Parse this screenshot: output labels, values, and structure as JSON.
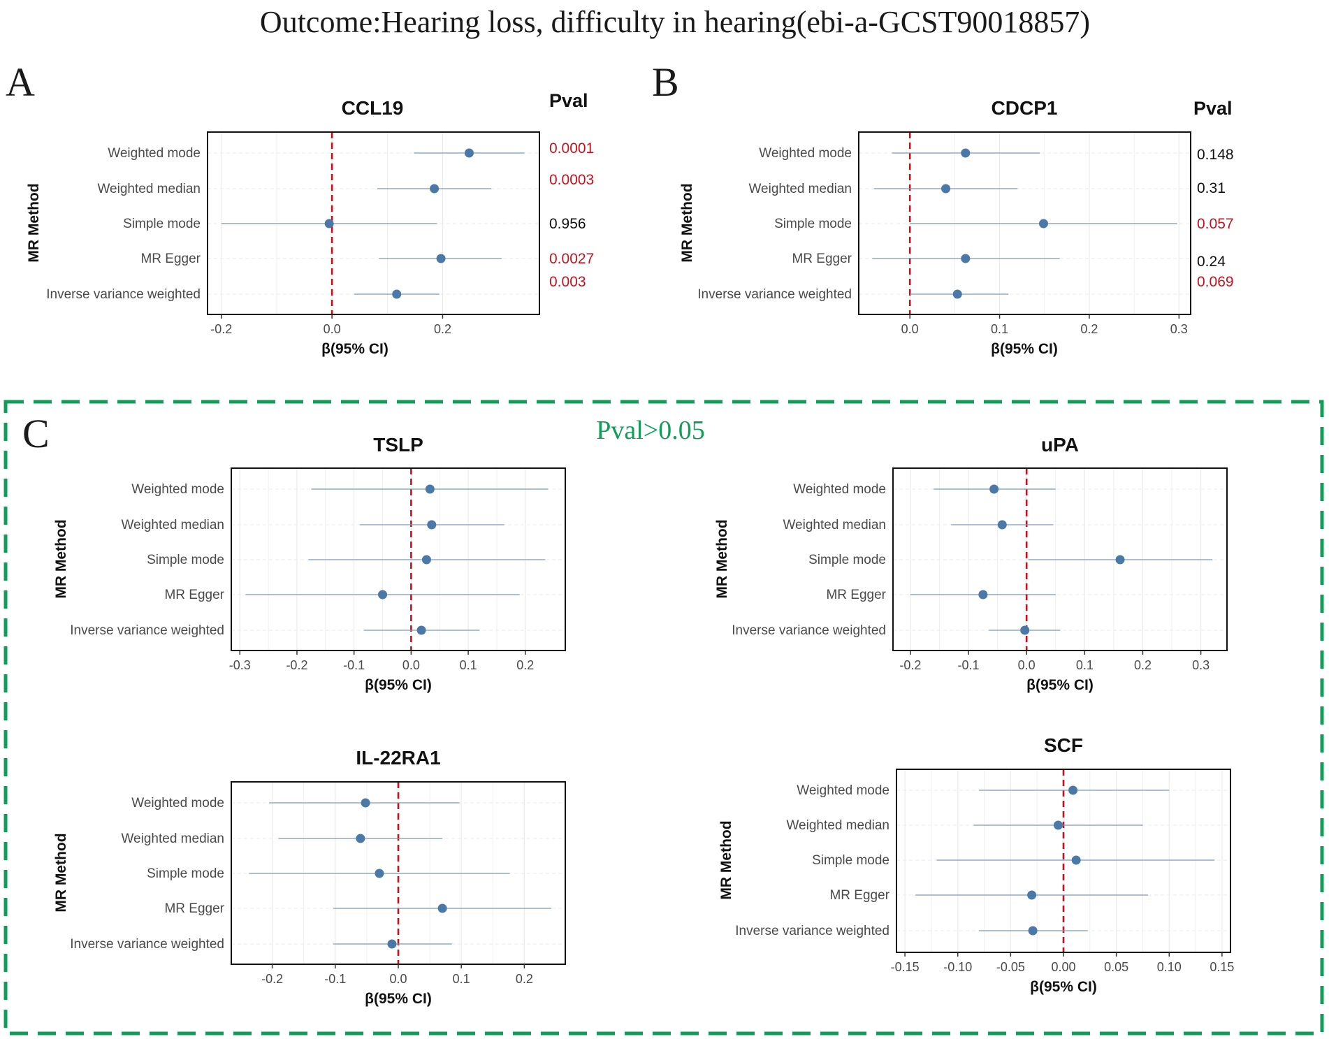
{
  "title": "Outcome:Hearing loss, difficulty in hearing(ebi-a-GCST90018857)",
  "panels": {
    "a": "A",
    "b": "B",
    "c": "C"
  },
  "group_c_label": "Pval>0.05",
  "pval_header": "Pval",
  "colors": {
    "point": "#4a79a8",
    "ci_line": "#7b99b8",
    "ref_line": "#c8101b",
    "significant": "#c8101b",
    "nonsignificant": "#111111",
    "group_box": "#0f9d58",
    "grid": "#ebebeb"
  },
  "chart_data": [
    {
      "type": "forest",
      "title": "CCL19",
      "xlabel": "β(95% CI)",
      "ylabel": "MR Method",
      "xlim": [
        -0.225,
        0.375
      ],
      "xticks": [
        -0.2,
        0.0,
        0.2
      ],
      "tick_labels": [
        "-0.2",
        "0.0",
        "0.2"
      ],
      "methods": [
        "Weighted mode",
        "Weighted median",
        "Simple mode",
        "MR Egger",
        "Inverse variance weighted"
      ],
      "estimates": [
        0.248,
        0.185,
        -0.005,
        0.197,
        0.117
      ],
      "ci_low": [
        0.148,
        0.082,
        -0.2,
        0.085,
        0.04
      ],
      "ci_high": [
        0.348,
        0.288,
        0.19,
        0.307,
        0.194
      ],
      "pvals": [
        "0.0001",
        "0.0003",
        "0.956",
        "0.0027",
        "0.003"
      ],
      "significant": [
        true,
        true,
        false,
        true,
        true
      ]
    },
    {
      "type": "forest",
      "title": "CDCP1",
      "xlabel": "β(95% CI)",
      "ylabel": "MR Method",
      "xlim": [
        -0.057,
        0.313
      ],
      "xticks": [
        0.0,
        0.1,
        0.2,
        0.3
      ],
      "tick_labels": [
        "0.0",
        "0.1",
        "0.2",
        "0.3"
      ],
      "methods": [
        "Weighted mode",
        "Weighted median",
        "Simple mode",
        "MR Egger",
        "Inverse variance weighted"
      ],
      "estimates": [
        0.062,
        0.04,
        0.149,
        0.062,
        0.053
      ],
      "ci_low": [
        -0.02,
        -0.04,
        0.0,
        -0.042,
        0.0
      ],
      "ci_high": [
        0.145,
        0.12,
        0.298,
        0.167,
        0.11
      ],
      "pvals": [
        "0.148",
        "0.31",
        "0.057",
        "0.24",
        "0.069"
      ],
      "significant": [
        false,
        false,
        true,
        false,
        true
      ]
    },
    {
      "type": "forest",
      "title": "TSLP",
      "xlabel": "β(95% CI)",
      "ylabel": "MR Method",
      "xlim": [
        -0.315,
        0.27
      ],
      "xticks": [
        -0.3,
        -0.2,
        -0.1,
        0.0,
        0.1,
        0.2
      ],
      "tick_labels": [
        "-0.3",
        "-0.2",
        "-0.1",
        "0.0",
        "0.1",
        "0.2"
      ],
      "methods": [
        "Weighted mode",
        "Weighted median",
        "Simple mode",
        "MR Egger",
        "Inverse variance weighted"
      ],
      "estimates": [
        0.033,
        0.036,
        0.027,
        -0.05,
        0.018
      ],
      "ci_low": [
        -0.175,
        -0.09,
        -0.18,
        -0.29,
        -0.083
      ],
      "ci_high": [
        0.24,
        0.163,
        0.235,
        0.19,
        0.12
      ],
      "pvals": [],
      "significant": []
    },
    {
      "type": "forest",
      "title": "uPA",
      "xlabel": "β(95% CI)",
      "ylabel": "MR Method",
      "xlim": [
        -0.23,
        0.345
      ],
      "xticks": [
        -0.2,
        -0.1,
        0.0,
        0.1,
        0.2,
        0.3
      ],
      "tick_labels": [
        "-0.2",
        "-0.1",
        "0.0",
        "0.1",
        "0.2",
        "0.3"
      ],
      "methods": [
        "Weighted mode",
        "Weighted median",
        "Simple mode",
        "MR Egger",
        "Inverse variance weighted"
      ],
      "estimates": [
        -0.056,
        -0.042,
        0.161,
        -0.075,
        -0.003
      ],
      "ci_low": [
        -0.16,
        -0.13,
        0.003,
        -0.2,
        -0.065
      ],
      "ci_high": [
        0.05,
        0.046,
        0.32,
        0.05,
        0.058
      ],
      "pvals": [],
      "significant": []
    },
    {
      "type": "forest",
      "title": "IL-22RA1",
      "xlabel": "β(95% CI)",
      "ylabel": "MR Method",
      "xlim": [
        -0.265,
        0.265
      ],
      "xticks": [
        -0.2,
        -0.1,
        0.0,
        0.1,
        0.2
      ],
      "tick_labels": [
        "-0.2",
        "-0.1",
        "0.0",
        "0.1",
        "0.2"
      ],
      "methods": [
        "Weighted mode",
        "Weighted median",
        "Simple mode",
        "MR Egger",
        "Inverse variance weighted"
      ],
      "estimates": [
        -0.052,
        -0.06,
        -0.03,
        0.07,
        -0.01
      ],
      "ci_low": [
        -0.205,
        -0.19,
        -0.237,
        -0.103,
        -0.103
      ],
      "ci_high": [
        0.097,
        0.07,
        0.177,
        0.243,
        0.085
      ],
      "pvals": [],
      "significant": []
    },
    {
      "type": "forest",
      "title": "SCF",
      "xlabel": "β(95% CI)",
      "ylabel": "MR Method",
      "xlim": [
        -0.158,
        0.158
      ],
      "xticks": [
        -0.15,
        -0.1,
        -0.05,
        0.0,
        0.05,
        0.1,
        0.15
      ],
      "tick_labels": [
        "-0.15",
        "-0.10",
        "-0.05",
        "0.00",
        "0.05",
        "0.10",
        "0.15"
      ],
      "methods": [
        "Weighted mode",
        "Weighted median",
        "Simple mode",
        "MR Egger",
        "Inverse variance weighted"
      ],
      "estimates": [
        0.009,
        -0.005,
        0.012,
        -0.03,
        -0.029
      ],
      "ci_low": [
        -0.08,
        -0.085,
        -0.12,
        -0.14,
        -0.08
      ],
      "ci_high": [
        0.1,
        0.075,
        0.143,
        0.08,
        0.023
      ],
      "pvals": [],
      "significant": []
    }
  ]
}
